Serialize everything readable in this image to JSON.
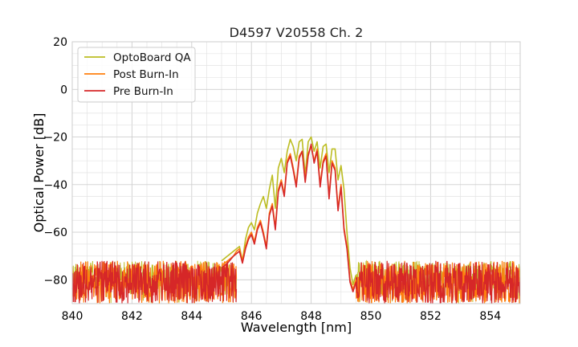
{
  "chart_data": {
    "type": "line",
    "title": "D4597 V20558 Ch. 2",
    "xlabel": "Wavelength [nm]",
    "ylabel": "Optical Power [dB]",
    "xlim": [
      840,
      855
    ],
    "ylim": [
      -90,
      20
    ],
    "xticks": [
      840,
      842,
      844,
      846,
      848,
      850,
      852,
      854
    ],
    "yticks": [
      20,
      0,
      -20,
      -40,
      -60,
      -80
    ],
    "xtick_labels": [
      "840",
      "842",
      "844",
      "846",
      "848",
      "850",
      "852",
      "854"
    ],
    "ytick_labels": [
      "20",
      "0",
      "−20",
      "−40",
      "−60",
      "−80"
    ],
    "grid": true,
    "legend_position": "top-left",
    "noise_floor": {
      "x_range_left": [
        840,
        845.5
      ],
      "x_range_right": [
        849.5,
        855
      ],
      "band": [
        -90,
        -72
      ]
    },
    "series": [
      {
        "name": "OptoBoard QA",
        "color": "#bcbd22",
        "x": [
          845.0,
          845.2,
          845.4,
          845.5,
          845.6,
          845.7,
          845.8,
          845.9,
          846.0,
          846.1,
          846.2,
          846.3,
          846.4,
          846.5,
          846.6,
          846.7,
          846.8,
          846.9,
          847.0,
          847.1,
          847.2,
          847.3,
          847.4,
          847.5,
          847.6,
          847.7,
          847.8,
          847.9,
          848.0,
          848.1,
          848.2,
          848.3,
          848.4,
          848.5,
          848.6,
          848.7,
          848.8,
          848.9,
          849.0,
          849.1,
          849.2,
          849.3,
          849.4,
          849.5
        ],
        "y": [
          -72,
          -70,
          -68,
          -67,
          -66,
          -72,
          -63,
          -58,
          -56,
          -59,
          -52,
          -48,
          -45,
          -50,
          -42,
          -36,
          -50,
          -33,
          -29,
          -35,
          -26,
          -21,
          -24,
          -30,
          -22,
          -21,
          -36,
          -22,
          -20,
          -26,
          -22,
          -33,
          -24,
          -23,
          -35,
          -25,
          -25,
          -38,
          -32,
          -42,
          -60,
          -75,
          -82,
          -78
        ]
      },
      {
        "name": "Post Burn-In",
        "color": "#ff7f0e",
        "x": [
          845.0,
          845.2,
          845.4,
          845.5,
          845.6,
          845.7,
          845.8,
          845.9,
          846.0,
          846.1,
          846.2,
          846.3,
          846.4,
          846.5,
          846.6,
          846.7,
          846.8,
          846.9,
          847.0,
          847.1,
          847.2,
          847.3,
          847.4,
          847.5,
          847.6,
          847.7,
          847.8,
          847.9,
          848.0,
          848.1,
          848.2,
          848.3,
          848.4,
          848.5,
          848.6,
          848.7,
          848.8,
          848.9,
          849.0,
          849.1,
          849.2,
          849.3,
          849.4,
          849.5
        ],
        "y": [
          -74,
          -72,
          -70,
          -68,
          -67,
          -72,
          -66,
          -62,
          -60,
          -64,
          -58,
          -55,
          -60,
          -66,
          -52,
          -48,
          -58,
          -42,
          -38,
          -44,
          -30,
          -27,
          -33,
          -40,
          -28,
          -26,
          -38,
          -27,
          -24,
          -30,
          -25,
          -40,
          -30,
          -27,
          -45,
          -30,
          -33,
          -50,
          -40,
          -58,
          -66,
          -80,
          -84,
          -80
        ]
      },
      {
        "name": "Pre Burn-In",
        "color": "#d62728",
        "x": [
          845.0,
          845.2,
          845.4,
          845.5,
          845.6,
          845.7,
          845.8,
          845.9,
          846.0,
          846.1,
          846.2,
          846.3,
          846.4,
          846.5,
          846.6,
          846.7,
          846.8,
          846.9,
          847.0,
          847.1,
          847.2,
          847.3,
          847.4,
          847.5,
          847.6,
          847.7,
          847.8,
          847.9,
          848.0,
          848.1,
          848.2,
          848.3,
          848.4,
          848.5,
          848.6,
          848.7,
          848.8,
          848.9,
          849.0,
          849.1,
          849.2,
          849.3,
          849.4,
          849.5
        ],
        "y": [
          -75,
          -73,
          -70,
          -69,
          -68,
          -73,
          -67,
          -63,
          -61,
          -65,
          -59,
          -56,
          -61,
          -67,
          -53,
          -49,
          -59,
          -43,
          -39,
          -45,
          -31,
          -28,
          -34,
          -41,
          -29,
          -26,
          -39,
          -28,
          -23,
          -31,
          -26,
          -41,
          -31,
          -28,
          -46,
          -31,
          -34,
          -51,
          -41,
          -59,
          -67,
          -81,
          -85,
          -81
        ]
      }
    ]
  }
}
